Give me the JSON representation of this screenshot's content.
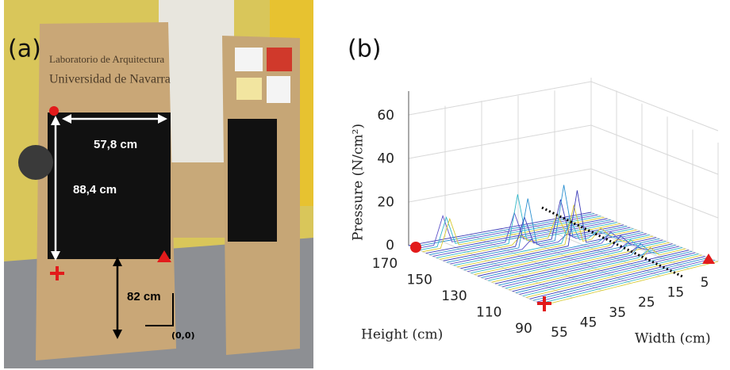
{
  "panel_a": {
    "label": "(a)",
    "sign_line_1": "Laboratorio de Arquitectura",
    "sign_line_2": "Universidad de Navarra",
    "width_label": "57,8 cm",
    "height_label": "88,4 cm",
    "offset_label": "82 cm",
    "origin_label": "(0,0)"
  },
  "panel_b": {
    "label": "(b)",
    "z_label": "Pressure (N/cm²)",
    "height_axis_label": "Height (cm)",
    "width_axis_label": "Width (cm)",
    "z_ticks": [
      0,
      20,
      40,
      60
    ],
    "height_ticks": [
      170,
      150,
      130,
      110,
      90
    ],
    "width_ticks": [
      55,
      45,
      35,
      25,
      15,
      5
    ]
  }
}
